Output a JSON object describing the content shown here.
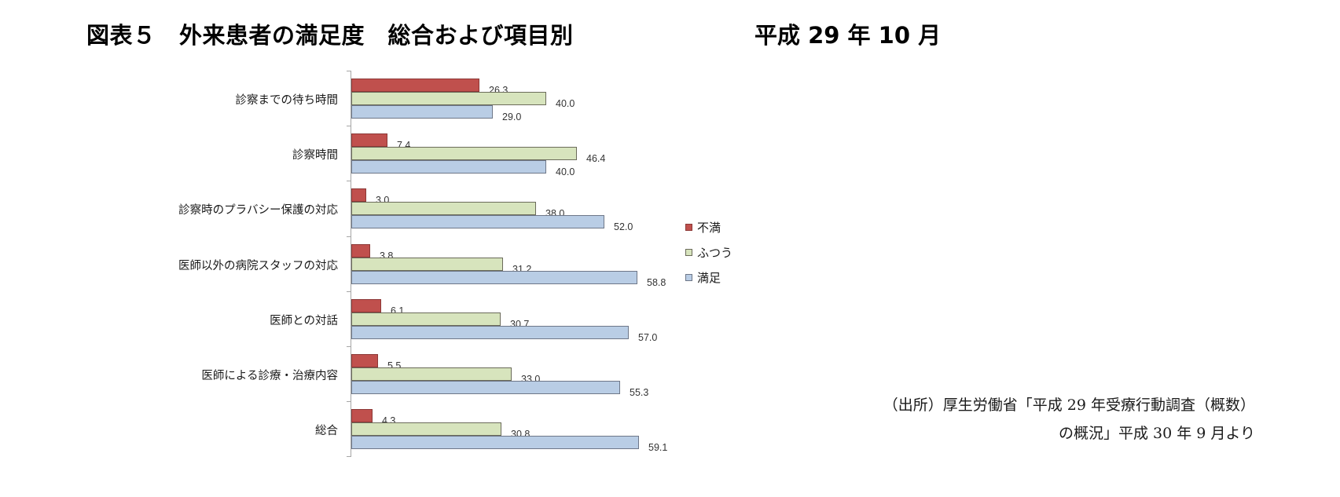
{
  "header": {
    "title": "図表５　外来患者の満足度　総合および項目別",
    "date": "平成 29 年 10 月"
  },
  "legend": [
    {
      "label": "不満",
      "color": "#C0504D"
    },
    {
      "label": "ふつう",
      "color": "#D7E4BD"
    },
    {
      "label": "満足",
      "color": "#B9CDE5"
    }
  ],
  "source": {
    "line1": "（出所）厚生労働省「平成 29 年受療行動調査（概数）",
    "line2": "の概況」平成 30 年 9 月より"
  },
  "chart_data": {
    "type": "bar",
    "orientation": "horizontal",
    "title": "図表５　外来患者の満足度　総合および項目別　平成 29 年 10 月",
    "xlabel": "",
    "ylabel": "",
    "categories": [
      "診察までの待ち時間",
      "診察時間",
      "診察時のプラバシー保護の対応",
      "医師以外の病院スタッフの対応",
      "医師との対話",
      "医師による診療・治療内容",
      "総合"
    ],
    "series": [
      {
        "name": "不満",
        "color": "#C0504D",
        "values": [
          26.3,
          7.4,
          3.0,
          3.8,
          6.1,
          5.5,
          4.3
        ]
      },
      {
        "name": "ふつう",
        "color": "#D7E4BD",
        "values": [
          40.0,
          46.4,
          38.0,
          31.2,
          30.7,
          33.0,
          30.8
        ]
      },
      {
        "name": "満足",
        "color": "#B9CDE5",
        "values": [
          29.0,
          40.0,
          52.0,
          58.8,
          57.0,
          55.3,
          59.1
        ]
      }
    ],
    "value_labels": [
      [
        "26.3",
        "40.0",
        "29.0"
      ],
      [
        "7.4",
        "46.4",
        "40.0"
      ],
      [
        "3.0",
        "38.0",
        "52.0"
      ],
      [
        "3.8",
        "31.2",
        "58.8"
      ],
      [
        "6.1",
        "30.7",
        "57.0"
      ],
      [
        "5.5",
        "33.0",
        "55.3"
      ],
      [
        "4.3",
        "30.8",
        "59.1"
      ]
    ],
    "unit": "%",
    "grid": false,
    "legend_position": "right",
    "xlim": [
      0,
      60
    ]
  }
}
